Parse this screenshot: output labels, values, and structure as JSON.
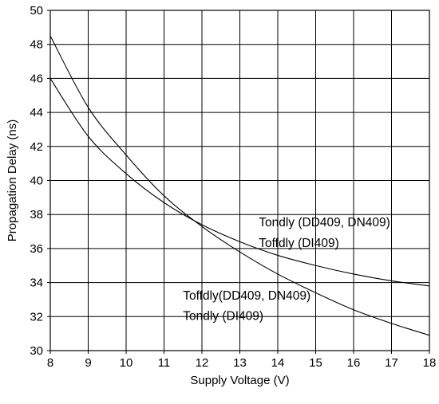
{
  "chart_data": {
    "type": "line",
    "xlabel": "Supply Voltage (V)",
    "ylabel": "Propagation Delay (ns)",
    "xlim": [
      8,
      18
    ],
    "ylim": [
      30,
      50
    ],
    "x_ticks": [
      "8",
      "9",
      "10",
      "11",
      "12",
      "13",
      "14",
      "15",
      "16",
      "17",
      "18"
    ],
    "y_ticks": [
      "30",
      "32",
      "34",
      "36",
      "38",
      "40",
      "42",
      "44",
      "46",
      "48",
      "50"
    ],
    "grid": true,
    "series": [
      {
        "x": [
          8,
          9,
          10,
          11,
          12,
          13,
          14,
          15,
          16,
          17,
          18
        ],
        "values": [
          48.5,
          44.3,
          41.5,
          39.1,
          37.3,
          35.8,
          34.5,
          33.4,
          32.4,
          31.6,
          30.9
        ]
      },
      {
        "x": [
          8,
          9,
          10,
          11,
          12,
          13,
          14,
          15,
          16,
          17,
          18
        ],
        "values": [
          46.0,
          42.6,
          40.4,
          38.7,
          37.4,
          36.4,
          35.6,
          35.0,
          34.5,
          34.1,
          33.8
        ]
      }
    ],
    "annotations": [
      {
        "text": "Tondly (DD409, DN409)",
        "x": 13.5,
        "y": 37.3
      },
      {
        "text": "Toffdly (DI409)",
        "x": 13.5,
        "y": 36.1
      },
      {
        "text": "Toffdly(DD409, DN409)",
        "x": 11.5,
        "y": 33.0
      },
      {
        "text": "Tondly (DI409)",
        "x": 11.5,
        "y": 31.8
      }
    ]
  }
}
